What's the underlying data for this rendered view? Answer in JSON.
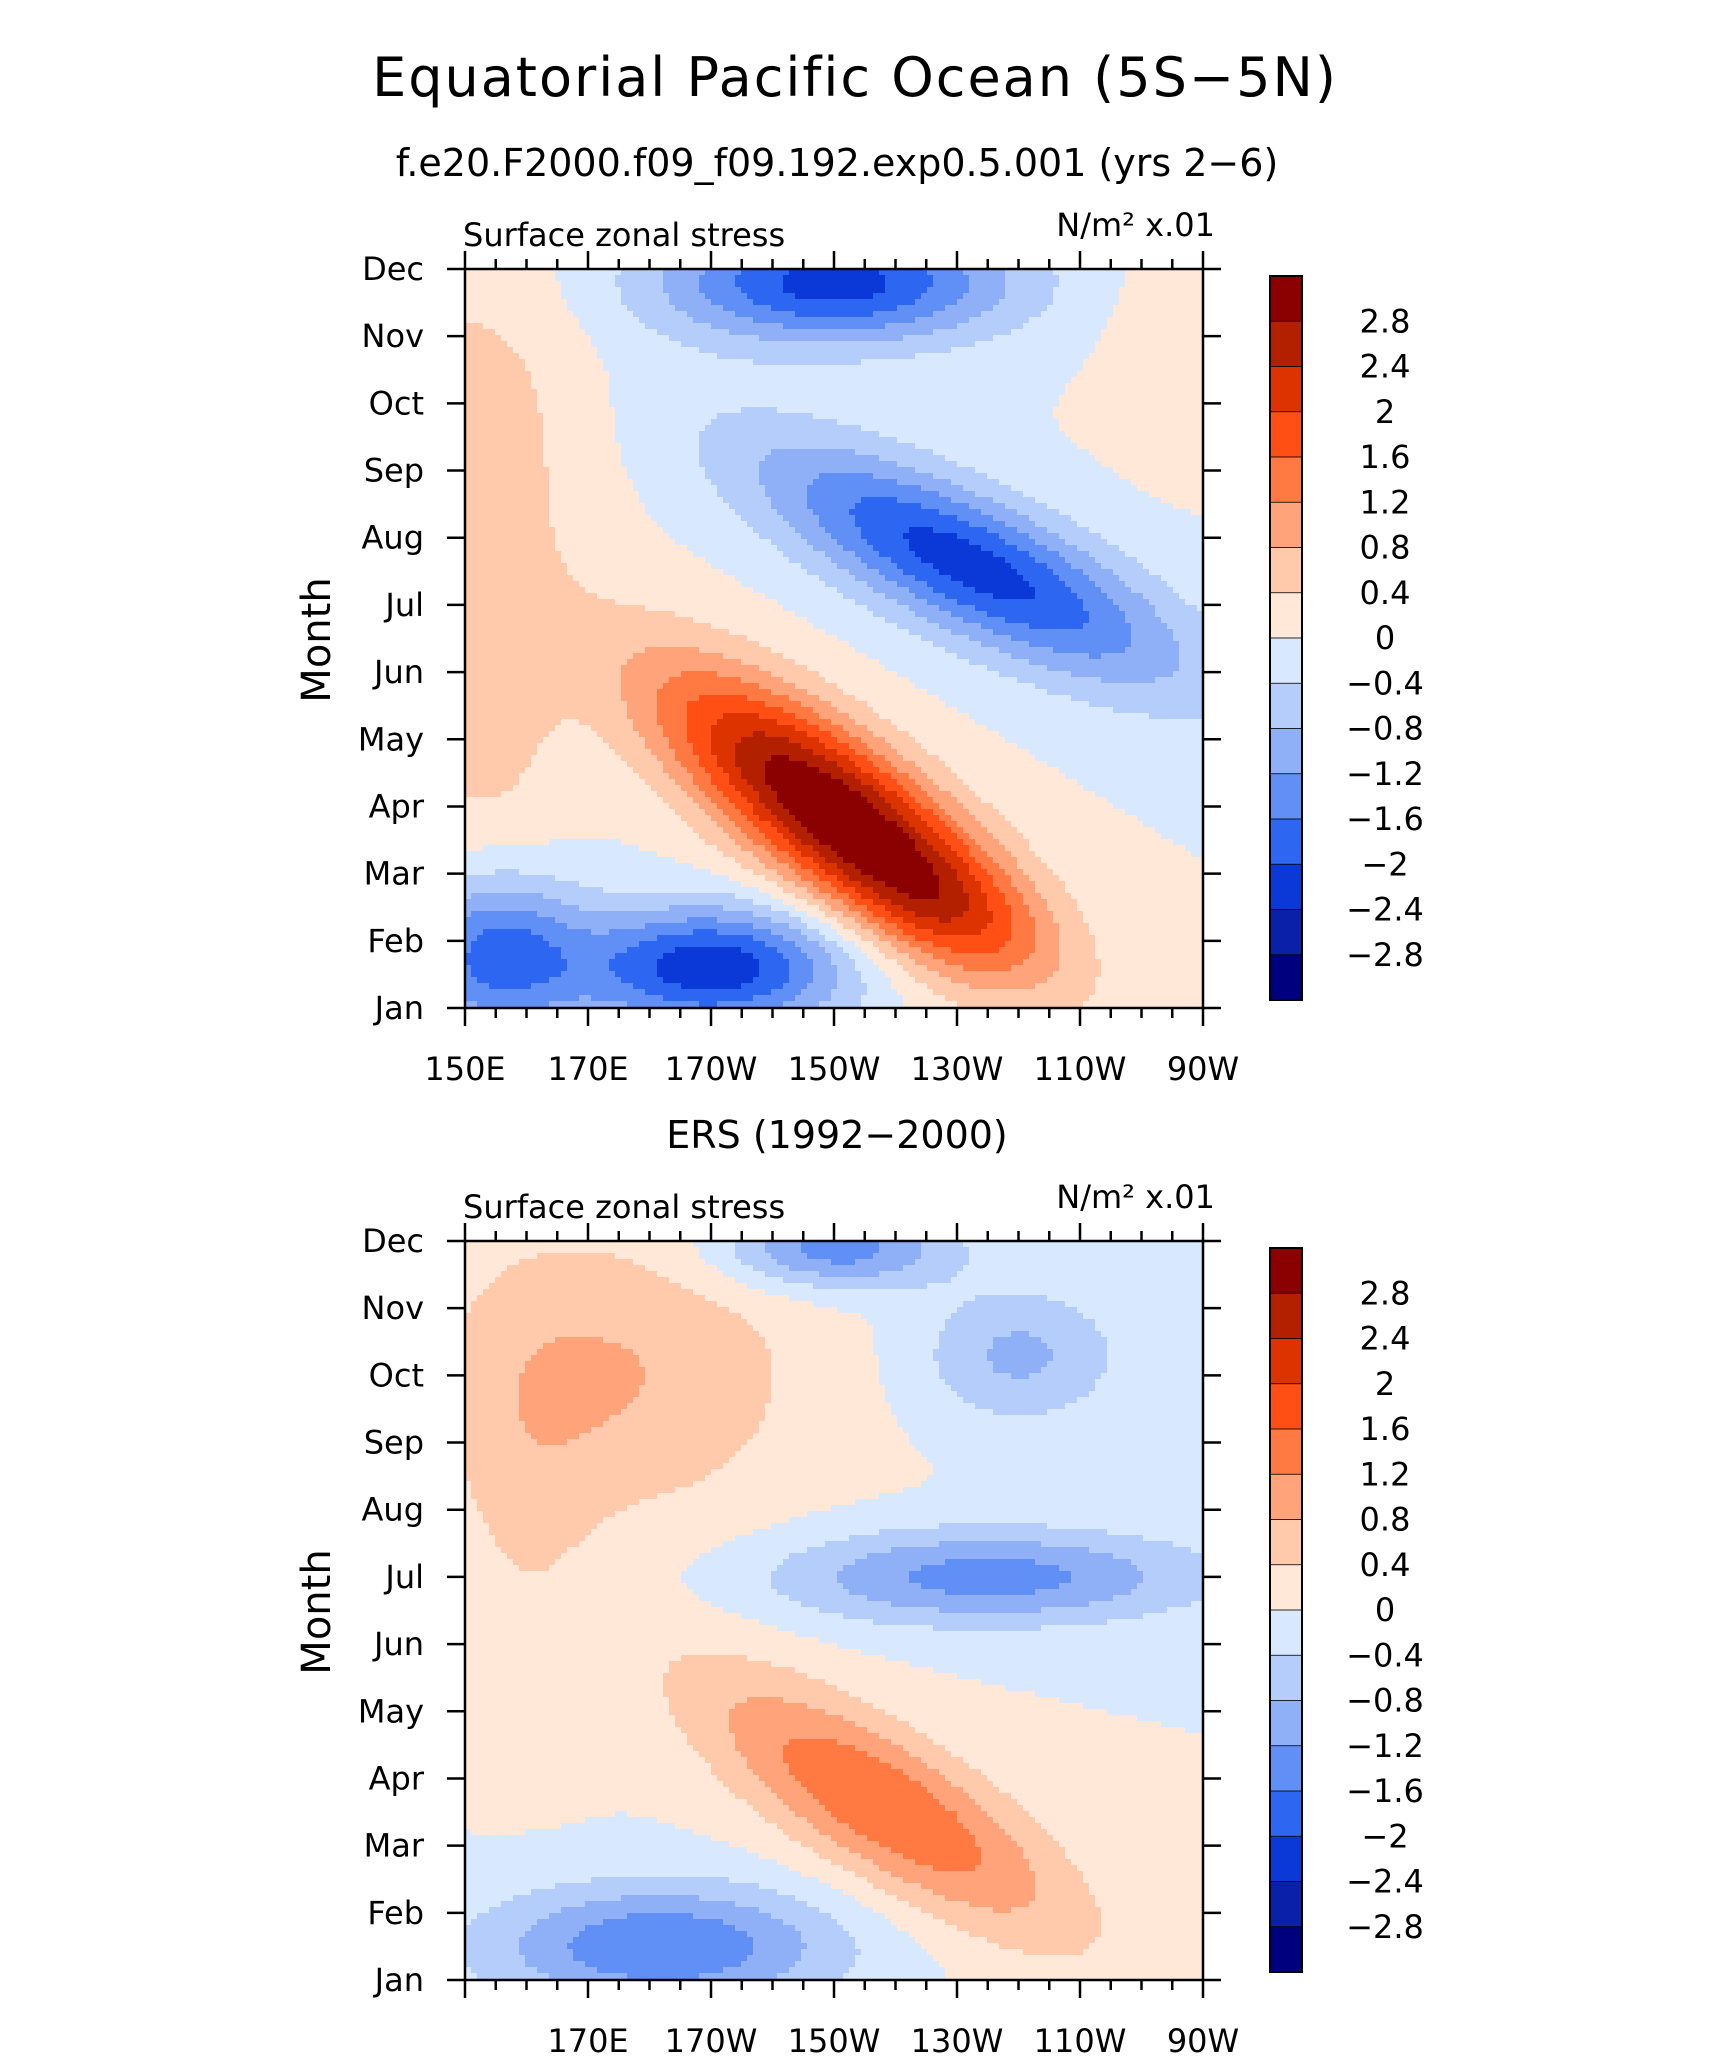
{
  "title": "Equatorial Pacific Ocean (5S−5N)",
  "chart_data": [
    {
      "type": "heatmap",
      "subtitle": "f.e20.F2000.f09_f09.192.exp0.5.001 (yrs 2−6)",
      "left_label": "Surface zonal stress",
      "right_label": "N/m² x.01",
      "ylabel": "Month",
      "x_ticks": [
        "150E",
        "170E",
        "170W",
        "150W",
        "130W",
        "110W",
        "90W"
      ],
      "y_ticks": [
        "Jan",
        "Feb",
        "Mar",
        "Apr",
        "May",
        "Jun",
        "Jul",
        "Aug",
        "Sep",
        "Oct",
        "Nov",
        "Dec"
      ],
      "xlim_lon": [
        150,
        270
      ],
      "ylim_month": [
        1,
        12
      ],
      "colorbar": {
        "levels": [
          "2.8",
          "2.4",
          "2",
          "1.6",
          "1.2",
          "0.8",
          "0.4",
          "0",
          "−0.4",
          "−0.8",
          "−1.2",
          "−1.6",
          "−2",
          "−2.4",
          "−2.8"
        ],
        "colors": [
          "#8b0000",
          "#b22000",
          "#dc3300",
          "#ff4f14",
          "#ff7a42",
          "#ffa37a",
          "#ffc9ac",
          "#ffe8d7",
          "#d7e8ff",
          "#b5cdfb",
          "#8fb0f7",
          "#6090f5",
          "#2d66f0",
          "#0a39d8",
          "#0a20a8",
          "#00007f"
        ]
      },
      "features": [
        {
          "lon": 209,
          "month": 4.0,
          "amp": 3.2,
          "slon": 28,
          "smon": 1.3,
          "tilt": -0.055
        },
        {
          "lon": 228,
          "month": 2.4,
          "amp": 0.9,
          "slon": 18,
          "smon": 1.0,
          "tilt": -0.03
        },
        {
          "lon": 153,
          "month": 5.8,
          "amp": 0.6,
          "slon": 14,
          "smon": 3.0,
          "tilt": 0
        },
        {
          "lon": 152,
          "month": 10.0,
          "amp": 0.5,
          "slon": 18,
          "smon": 2.5,
          "tilt": 0
        },
        {
          "lon": 190,
          "month": 1.6,
          "amp": -2.3,
          "slon": 22,
          "smon": 0.9,
          "tilt": 0
        },
        {
          "lon": 155,
          "month": 1.8,
          "amp": -1.8,
          "slon": 14,
          "smon": 1.2,
          "tilt": 0
        },
        {
          "lon": 232,
          "month": 7.6,
          "amp": -2.2,
          "slon": 34,
          "smon": 1.1,
          "tilt": -0.04
        },
        {
          "lon": 210,
          "month": 11.8,
          "amp": -2.2,
          "slon": 28,
          "smon": 0.9,
          "tilt": 0
        },
        {
          "lon": 268,
          "month": 11.0,
          "amp": 0.4,
          "slon": 12,
          "smon": 1.4,
          "tilt": 0
        }
      ]
    },
    {
      "type": "heatmap",
      "subtitle": "ERS (1992−2000)",
      "left_label": "Surface zonal stress",
      "right_label": "N/m² x.01",
      "ylabel": "Month",
      "x_ticks": [
        "",
        "170E",
        "170W",
        "150W",
        "130W",
        "110W",
        "90W"
      ],
      "y_ticks": [
        "Jan",
        "Feb",
        "Mar",
        "Apr",
        "May",
        "Jun",
        "Jul",
        "Aug",
        "Sep",
        "Oct",
        "Nov",
        "Dec"
      ],
      "xlim_lon": [
        150,
        270
      ],
      "ylim_month": [
        1,
        12
      ],
      "colorbar": {
        "levels": [
          "2.8",
          "2.4",
          "2",
          "1.6",
          "1.2",
          "0.8",
          "0.4",
          "0",
          "−0.4",
          "−0.8",
          "−1.2",
          "−1.6",
          "−2",
          "−2.4",
          "−2.8"
        ],
        "colors": [
          "#8b0000",
          "#b22000",
          "#dc3300",
          "#ff4f14",
          "#ff7a42",
          "#ffa37a",
          "#ffc9ac",
          "#ffe8d7",
          "#d7e8ff",
          "#b5cdfb",
          "#8fb0f7",
          "#6090f5",
          "#2d66f0",
          "#0a39d8",
          "#0a20a8",
          "#00007f"
        ]
      },
      "features": [
        {
          "lon": 218,
          "month": 3.6,
          "amp": 1.6,
          "slon": 30,
          "smon": 1.2,
          "tilt": -0.05
        },
        {
          "lon": 175,
          "month": 10.0,
          "amp": 0.8,
          "slon": 30,
          "smon": 2.2,
          "tilt": 0
        },
        {
          "lon": 160,
          "month": 8.0,
          "amp": 0.3,
          "slon": 12,
          "smon": 3.0,
          "tilt": 0
        },
        {
          "lon": 182,
          "month": 1.5,
          "amp": -1.6,
          "slon": 28,
          "smon": 0.9,
          "tilt": 0
        },
        {
          "lon": 235,
          "month": 7.0,
          "amp": -1.4,
          "slon": 34,
          "smon": 0.7,
          "tilt": 0
        },
        {
          "lon": 210,
          "month": 11.9,
          "amp": -1.5,
          "slon": 18,
          "smon": 0.6,
          "tilt": 0
        },
        {
          "lon": 240,
          "month": 10.3,
          "amp": -0.9,
          "slon": 16,
          "smon": 1.0,
          "tilt": 0
        }
      ]
    }
  ]
}
